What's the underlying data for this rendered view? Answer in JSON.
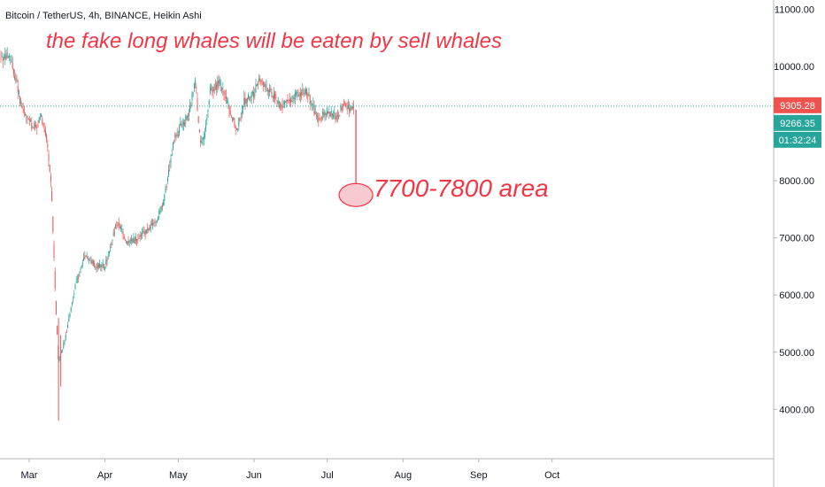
{
  "header": {
    "symbol_line": "Bitcoin / TetherUS, 4h, BINANCE, Heikin Ashi"
  },
  "annotations": {
    "headline": "the fake long whales will be eaten by sell whales",
    "target_label": "7700-7800 area",
    "target_price": 7750
  },
  "price_tags": {
    "last_price": "9305.28",
    "last_price_value": 9305.28,
    "heikin_close": "9266.35",
    "countdown": "01:32:24"
  },
  "colors": {
    "up": "#26a69a",
    "down": "#ef5350",
    "annotation": "#f23645",
    "ellipse_fill": "#f8c9cf",
    "price_tag": "#ef5350",
    "close_tag": "#26a69a"
  },
  "chart_data": {
    "type": "candlestick",
    "chart_style": "Heikin Ashi",
    "timeframe": "4h",
    "exchange": "BINANCE",
    "x_ticks": [
      "Mar",
      "Apr",
      "May",
      "Jun",
      "Jul",
      "Aug",
      "Sep",
      "Oct"
    ],
    "y_ticks": [
      "4000.00",
      "5000.00",
      "6000.00",
      "7000.00",
      "8000.00",
      "9000.00",
      "10000.00",
      "11000.00"
    ],
    "ylim": [
      3200,
      11300
    ],
    "grid": false,
    "approx_price_path": {
      "x": [
        "2020-02-22",
        "2020-02-25",
        "2020-02-27",
        "2020-03-03",
        "2020-03-06",
        "2020-03-08",
        "2020-03-10",
        "2020-03-12",
        "2020-03-13",
        "2020-03-16",
        "2020-03-20",
        "2020-03-24",
        "2020-03-28",
        "2020-04-01",
        "2020-04-06",
        "2020-04-10",
        "2020-04-15",
        "2020-04-22",
        "2020-04-25",
        "2020-04-29",
        "2020-05-02",
        "2020-05-05",
        "2020-05-08",
        "2020-05-10",
        "2020-05-12",
        "2020-05-14",
        "2020-05-18",
        "2020-05-25",
        "2020-05-28",
        "2020-06-01",
        "2020-06-03",
        "2020-06-07",
        "2020-06-12",
        "2020-06-15",
        "2020-06-22",
        "2020-06-27",
        "2020-07-01",
        "2020-07-05",
        "2020-07-08",
        "2020-07-10",
        "2020-07-12"
      ],
      "y": [
        10150,
        9700,
        9250,
        8900,
        9100,
        8800,
        7900,
        5700,
        4800,
        5300,
        6200,
        6700,
        6500,
        6500,
        7300,
        6900,
        7000,
        7300,
        7600,
        8700,
        8950,
        9100,
        9800,
        8600,
        8800,
        9600,
        9700,
        8900,
        9400,
        9500,
        9800,
        9600,
        9300,
        9400,
        9600,
        9100,
        9200,
        9100,
        9400,
        9250,
        9300
      ]
    }
  }
}
